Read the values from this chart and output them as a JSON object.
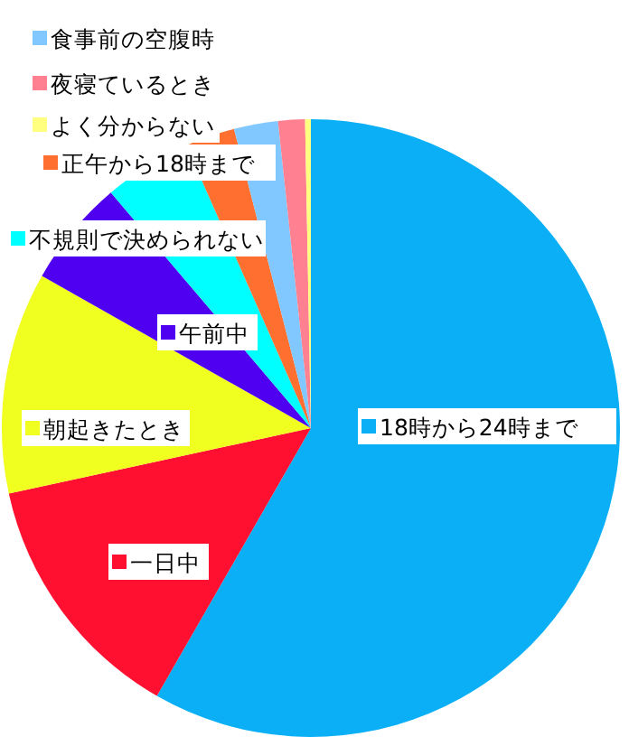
{
  "chart_data": {
    "type": "pie",
    "categories": [
      "18時から24時まで",
      "一日中",
      "朝起きたとき",
      "午前中",
      "不規則で決められない",
      "正午から18時まで",
      "食事前の空腹時",
      "夜寝ているとき",
      "よく分からない"
    ],
    "values": [
      58.3,
      13.3,
      11.6,
      5.6,
      4.6,
      2.6,
      2.3,
      1.4,
      0.3
    ],
    "legend": "top left",
    "colors": [
      "#0aaff5",
      "#ff1030",
      "#f0ff20",
      "#5000f0",
      "#00ffff",
      "#ff7030",
      "#80c8ff",
      "#ff8090",
      "#ffff80"
    ]
  }
}
